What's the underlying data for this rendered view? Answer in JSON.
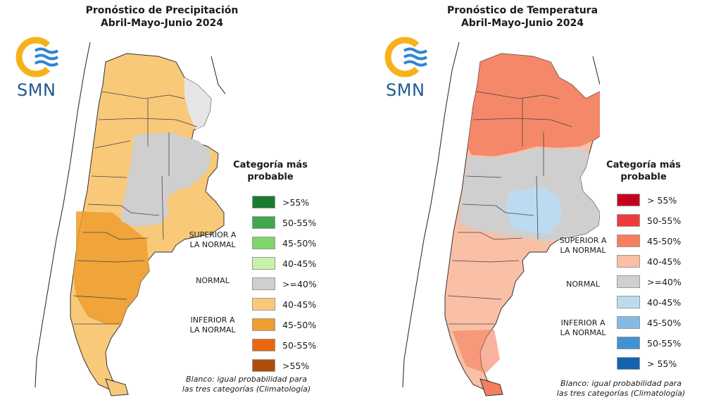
{
  "left_panel": {
    "title_line1": "Pronóstico de Precipitación",
    "title_line2": "Abril-Mayo-Junio 2024",
    "logo_text": "SMN",
    "legend_title_line1": "Categoría más",
    "legend_title_line2": "probable",
    "category_superior_line1": "SUPERIOR A",
    "category_superior_line2": "LA NORMAL",
    "category_normal": "NORMAL",
    "category_inferior_line1": "INFERIOR A",
    "category_inferior_line2": "LA NORMAL",
    "legend": [
      {
        "label": ">55%",
        "color": "#1a7a2e"
      },
      {
        "label": "50-55%",
        "color": "#3fa84f"
      },
      {
        "label": "45-50%",
        "color": "#7fd66a"
      },
      {
        "label": "40-45%",
        "color": "#c9f2a8"
      },
      {
        "label": ">=40%",
        "color": "#cfcfcf"
      },
      {
        "label": "40-45%",
        "color": "#f9c97a"
      },
      {
        "label": "45-50%",
        "color": "#ef9d2e"
      },
      {
        "label": "50-55%",
        "color": "#e8680f"
      },
      {
        "label": ">55%",
        "color": "#b04d0d"
      }
    ],
    "note_line1": "Blanco: igual probabilidad para",
    "note_line2": "las tres categorías (Climatología)"
  },
  "right_panel": {
    "title_line1": "Pronóstico de Temperatura",
    "title_line2": "Abril-Mayo-Junio 2024",
    "logo_text": "SMN",
    "legend_title_line1": "Categoría más",
    "legend_title_line2": "probable",
    "category_superior_line1": "SUPERIOR A",
    "category_superior_line2": "LA NORMAL",
    "category_normal": "NORMAL",
    "category_inferior_line1": "INFERIOR A",
    "category_inferior_line2": "LA NORMAL",
    "legend": [
      {
        "label": "> 55%",
        "color": "#c4001e"
      },
      {
        "label": "50-55%",
        "color": "#ee3a3a"
      },
      {
        "label": "45-50%",
        "color": "#f47e5e"
      },
      {
        "label": "40-45%",
        "color": "#f9c0a6"
      },
      {
        "label": ">=40%",
        "color": "#cfcfcf"
      },
      {
        "label": "40-45%",
        "color": "#bcdbf0"
      },
      {
        "label": "45-50%",
        "color": "#82bce6"
      },
      {
        "label": "50-55%",
        "color": "#3f92d6"
      },
      {
        "label": "> 55%",
        "color": "#1463b0"
      }
    ],
    "note_line1": "Blanco: igual probabilidad para",
    "note_line2": "las tres categorías (Climatología)"
  },
  "colors": {
    "logo_sun": "#f6b21b",
    "logo_waves": "#2f86d1",
    "logo_text": "#1f5a8f"
  }
}
